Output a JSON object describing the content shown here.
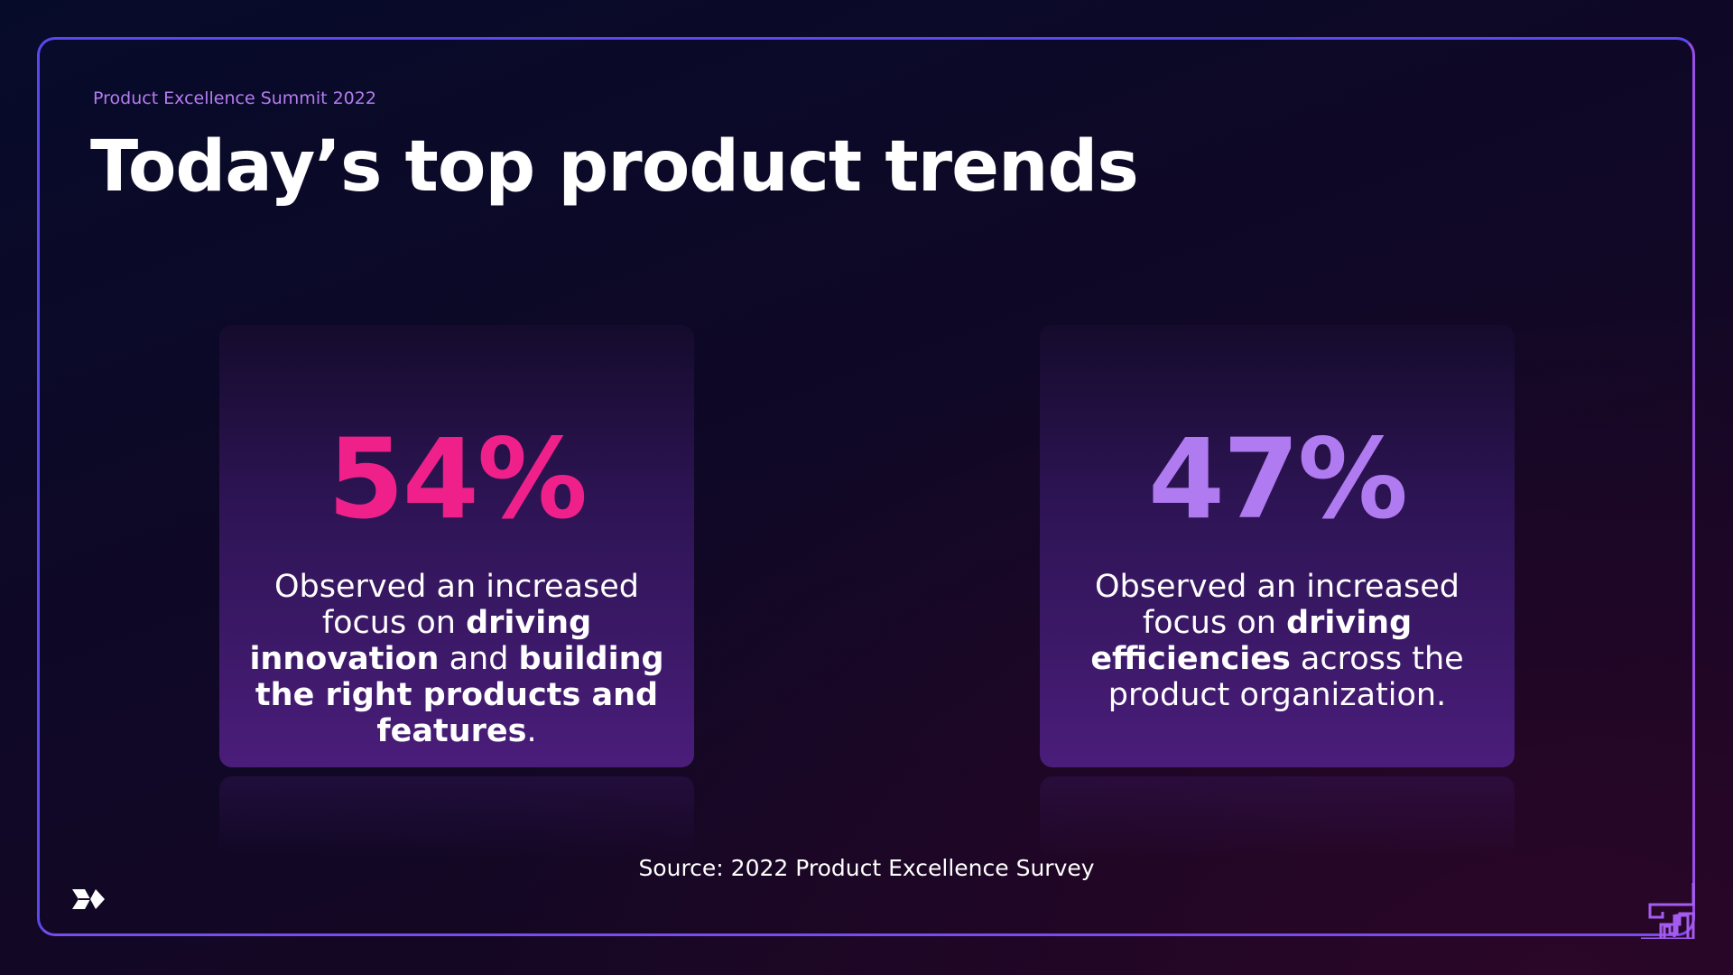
{
  "header": {
    "subtitle": "Product Excellence Summit 2022",
    "title": "Today’s top product trends"
  },
  "cards": [
    {
      "value": "54%",
      "color": "#f0208a",
      "text": [
        "Observed an increased focus on ",
        "driving innovation",
        " and ",
        "building the right products and features",
        "."
      ]
    },
    {
      "value": "47%",
      "color": "#b07af0",
      "text": [
        "Observed an increased focus on ",
        "driving efficiencies",
        " across the product organization.",
        "",
        ""
      ]
    }
  ],
  "footer": {
    "source": "Source: 2022 Product Excellence Survey"
  },
  "icons": {
    "logo": "brand-logo-icon",
    "corner": "maze-icon"
  },
  "colors": {
    "accent": "#b57cf0",
    "border": "#6a4cf2"
  }
}
